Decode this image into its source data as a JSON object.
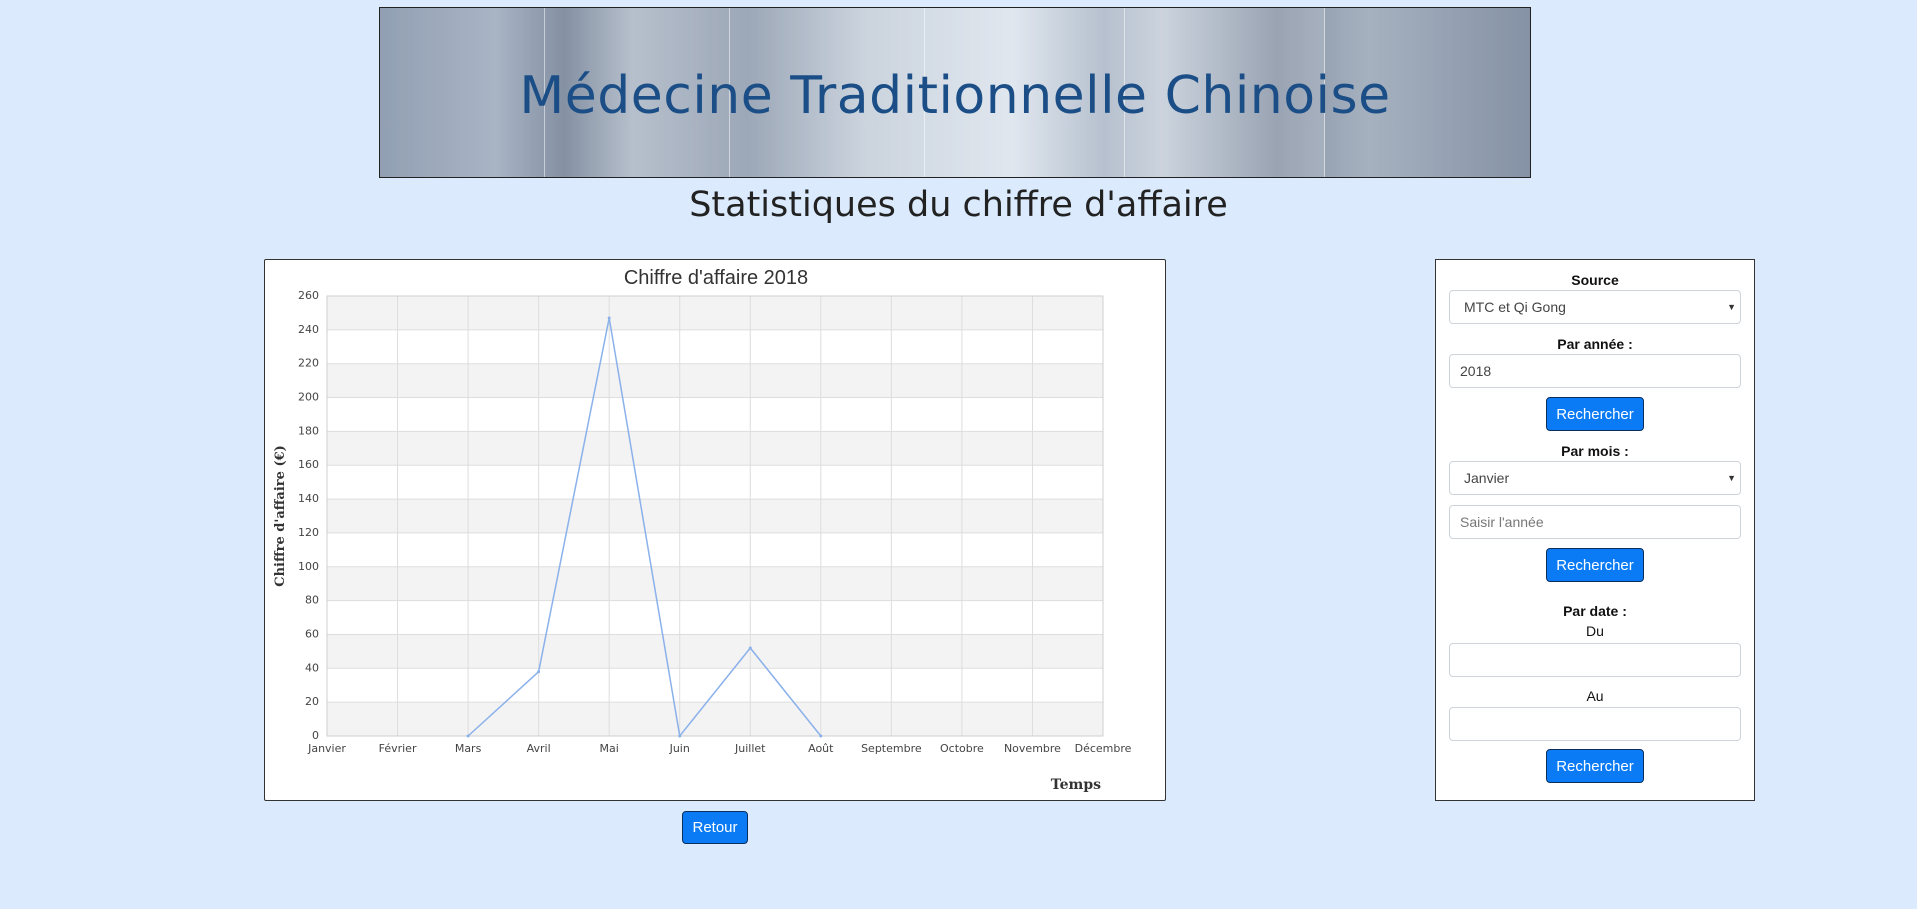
{
  "header": {
    "banner_title": "Médecine Traditionnelle Chinoise",
    "page_title": "Statistiques du chiffre d'affaire"
  },
  "chart_data": {
    "type": "line",
    "title": "Chiffre d'affaire 2018",
    "xlabel": "Temps",
    "ylabel": "Chiffre d'affaire (€)",
    "categories": [
      "Janvier",
      "Février",
      "Mars",
      "Avril",
      "Mai",
      "Juin",
      "Juillet",
      "Août",
      "Septembre",
      "Octobre",
      "Novembre",
      "Décembre"
    ],
    "series": [
      {
        "values": [
          null,
          null,
          0,
          38,
          247,
          0,
          52,
          0,
          null,
          null,
          null,
          null
        ]
      }
    ],
    "ylim": [
      0,
      260
    ],
    "yticks": [
      0,
      20,
      40,
      60,
      80,
      100,
      120,
      140,
      160,
      180,
      200,
      220,
      240,
      260
    ],
    "grid": true,
    "line_color": "#8ab1ea"
  },
  "actions": {
    "retour_label": "Retour"
  },
  "form": {
    "source_label": "Source",
    "source_value": "MTC et Qi Gong",
    "annee_label": "Par année :",
    "annee_value": "2018",
    "rechercher_label": "Rechercher",
    "mois_label": "Par mois :",
    "mois_value": "Janvier",
    "mois_annee_placeholder": "Saisir l'année",
    "date_label": "Par date :",
    "du_label": "Du",
    "au_label": "Au"
  },
  "colors": {
    "background": "#dbebfd",
    "accent": "#0a7bf5",
    "title": "#1b4e86"
  }
}
